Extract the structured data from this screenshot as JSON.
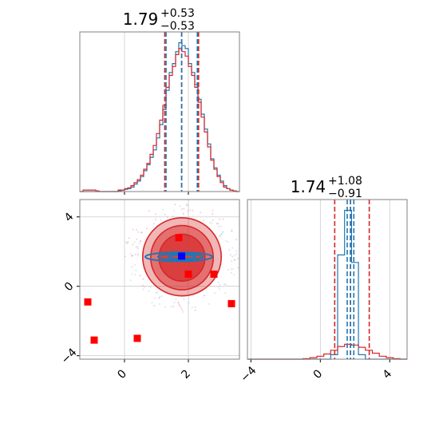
{
  "colors": {
    "series_a": "#1f77b4",
    "series_b": "#d62728",
    "markers": "#ff0000",
    "highlight_marker": "#0000ff",
    "grid": "#cccccc",
    "frame": "#808080"
  },
  "chart_data": [
    {
      "type": "histogram",
      "panel": "upper-left",
      "title": {
        "value": "1.79",
        "plus": "+0.53",
        "minus": "−0.53"
      },
      "xlim": [
        -1.4,
        3.6
      ],
      "xticks": [
        0,
        2
      ],
      "bins_x": [
        -1.35,
        -1.25,
        -1.15,
        -1.05,
        -0.95,
        -0.85,
        -0.75,
        -0.65,
        -0.55,
        -0.45,
        -0.35,
        -0.25,
        -0.15,
        -0.05,
        0.05,
        0.15,
        0.25,
        0.35,
        0.45,
        0.55,
        0.65,
        0.75,
        0.85,
        0.95,
        1.05,
        1.15,
        1.25,
        1.35,
        1.45,
        1.55,
        1.65,
        1.75,
        1.85,
        1.95,
        2.05,
        2.15,
        2.25,
        2.35,
        2.45,
        2.55,
        2.65,
        2.75,
        2.85,
        2.95,
        3.05,
        3.15,
        3.25,
        3.35,
        3.45,
        3.55
      ],
      "series": [
        {
          "color_key": "series_a",
          "values": [
            0,
            0,
            0,
            0,
            0,
            0,
            0,
            0,
            0,
            0,
            0,
            0,
            0.5,
            1,
            1.5,
            2,
            3,
            5,
            7,
            10,
            14,
            18,
            23,
            28,
            36,
            45,
            55,
            68,
            80,
            86,
            94,
            100,
            98,
            96,
            86,
            80,
            72,
            62,
            52,
            42,
            32,
            22,
            16,
            11,
            7,
            4,
            2,
            1,
            0.5,
            0
          ]
        },
        {
          "color_key": "series_b",
          "values": [
            0,
            1,
            1,
            1,
            1,
            0.5,
            0,
            0,
            0,
            0,
            0,
            0,
            1,
            1,
            2,
            2.5,
            4,
            6,
            8,
            11,
            15,
            19,
            25,
            31,
            39,
            48,
            58,
            70,
            78,
            84,
            92,
            96,
            94,
            91,
            84,
            78,
            70,
            60,
            50,
            40,
            30,
            21,
            15,
            10,
            6,
            3,
            2,
            1,
            0.5,
            0
          ]
        }
      ],
      "vlines": [
        {
          "x": 1.26,
          "color_key": "series_b"
        },
        {
          "x": 1.79,
          "color_key": "series_b"
        },
        {
          "x": 2.32,
          "color_key": "series_b"
        },
        {
          "x": 1.3,
          "color_key": "series_a"
        },
        {
          "x": 1.79,
          "color_key": "series_a"
        },
        {
          "x": 2.28,
          "color_key": "series_a"
        }
      ]
    },
    {
      "type": "scatter",
      "panel": "lower-left",
      "xlim": [
        -1.4,
        3.6
      ],
      "ylim": [
        -4.2,
        5
      ],
      "xticks": [
        0,
        2
      ],
      "yticks": [
        -4,
        0,
        4
      ],
      "xtick_labels": [
        "0",
        "2"
      ],
      "ytick_labels": [
        "−4",
        "0",
        "4"
      ],
      "contours_b": [
        {
          "cx": 1.8,
          "cy": 1.7,
          "rx": 1.23,
          "ry": 2.25,
          "opacity": 0.45
        },
        {
          "cx": 1.8,
          "cy": 1.65,
          "rx": 0.98,
          "ry": 1.85,
          "opacity": 0.65
        },
        {
          "cx": 1.8,
          "cy": 1.65,
          "rx": 0.72,
          "ry": 1.35,
          "opacity": 0.9
        }
      ],
      "contours_a": [
        {
          "cx": 1.7,
          "cy": 1.7,
          "rx": 1.05,
          "ry": 0.26
        },
        {
          "cx": 1.75,
          "cy": 1.7,
          "rx": 0.7,
          "ry": 0.18
        },
        {
          "cx": 1.8,
          "cy": 1.7,
          "rx": 0.42,
          "ry": 0.11
        }
      ],
      "markers": [
        {
          "x": 1.7,
          "y": 2.8
        },
        {
          "x": 2.0,
          "y": 0.7
        },
        {
          "x": 2.8,
          "y": 0.7
        },
        {
          "x": 3.35,
          "y": -1.0
        },
        {
          "x": -1.15,
          "y": -0.9
        },
        {
          "x": -0.95,
          "y": -3.1
        },
        {
          "x": 0.4,
          "y": -3.0
        }
      ],
      "highlight": {
        "x": 1.79,
        "y": 1.74
      }
    },
    {
      "type": "histogram",
      "panel": "lower-right",
      "title": {
        "value": "1.74",
        "plus": "+1.08",
        "minus": "−0.91"
      },
      "xlim": [
        -4.2,
        5
      ],
      "xticks": [
        -4,
        0,
        4
      ],
      "xtick_labels": [
        "−4",
        "0",
        "4"
      ],
      "bins_x": [
        -4.0,
        -3.6,
        -3.2,
        -2.8,
        -2.4,
        -2.0,
        -1.6,
        -1.2,
        -0.8,
        -0.4,
        0.0,
        0.4,
        0.8,
        1.2,
        1.6,
        2.0,
        2.4,
        2.8,
        3.2,
        3.6,
        4.0,
        4.4,
        4.8
      ],
      "series": [
        {
          "color_key": "series_a",
          "values": [
            0,
            0,
            0,
            0,
            0,
            0,
            0,
            0,
            0,
            0,
            0,
            0,
            3,
            70,
            100,
            65,
            3,
            0,
            0,
            0,
            0,
            0,
            0
          ]
        },
        {
          "color_key": "series_b",
          "values": [
            0,
            0,
            0,
            0,
            0,
            0,
            0,
            0,
            0.3,
            1,
            2,
            3.5,
            6,
            8.5,
            10,
            9.5,
            8,
            6,
            4,
            2,
            1,
            0.3,
            0
          ]
        }
      ],
      "vlines": [
        {
          "x": 0.83,
          "color_key": "series_b"
        },
        {
          "x": 1.74,
          "color_key": "series_b"
        },
        {
          "x": 2.82,
          "color_key": "series_b"
        },
        {
          "x": 1.55,
          "color_key": "series_a"
        },
        {
          "x": 1.74,
          "color_key": "series_a"
        },
        {
          "x": 1.93,
          "color_key": "series_a"
        }
      ]
    }
  ]
}
